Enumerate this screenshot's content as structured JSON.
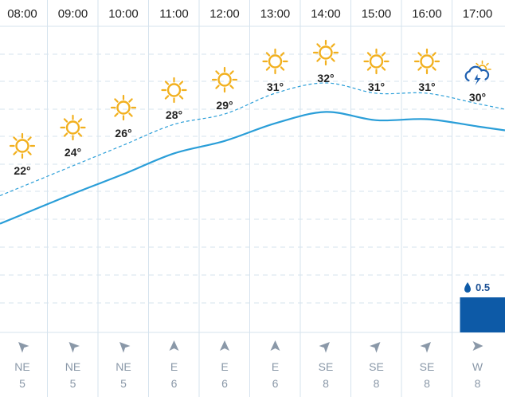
{
  "colors": {
    "sun": "#F2B01E",
    "storm": "#1D5FB0",
    "temp_line": "#2A9ED8",
    "feels_line": "#2A9ED8",
    "precip_bar": "#0D5AA7",
    "grid": "#D6E3EE",
    "wind_arrow": "#8A98A8"
  },
  "hours": [
    {
      "time": "08:00",
      "temp_label": "22°",
      "icon": "sun-icon",
      "wind_dir": "NE",
      "wind_speed": "5",
      "wind_bearing": 225
    },
    {
      "time": "09:00",
      "temp_label": "24°",
      "icon": "sun-icon",
      "wind_dir": "NE",
      "wind_speed": "5",
      "wind_bearing": 225
    },
    {
      "time": "10:00",
      "temp_label": "26°",
      "icon": "sun-icon",
      "wind_dir": "NE",
      "wind_speed": "5",
      "wind_bearing": 225
    },
    {
      "time": "11:00",
      "temp_label": "28°",
      "icon": "sun-icon",
      "wind_dir": "E",
      "wind_speed": "6",
      "wind_bearing": 270
    },
    {
      "time": "12:00",
      "temp_label": "29°",
      "icon": "sun-icon",
      "wind_dir": "E",
      "wind_speed": "6",
      "wind_bearing": 270
    },
    {
      "time": "13:00",
      "temp_label": "31°",
      "icon": "sun-icon",
      "wind_dir": "E",
      "wind_speed": "6",
      "wind_bearing": 270
    },
    {
      "time": "14:00",
      "temp_label": "32°",
      "icon": "sun-icon",
      "wind_dir": "SE",
      "wind_speed": "8",
      "wind_bearing": 315
    },
    {
      "time": "15:00",
      "temp_label": "31°",
      "icon": "sun-icon",
      "wind_dir": "SE",
      "wind_speed": "8",
      "wind_bearing": 315
    },
    {
      "time": "16:00",
      "temp_label": "31°",
      "icon": "sun-icon",
      "wind_dir": "SE",
      "wind_speed": "8",
      "wind_bearing": 315
    },
    {
      "time": "17:00",
      "temp_label": "30°",
      "icon": "thunderstorm-icon",
      "wind_dir": "W",
      "wind_speed": "8",
      "wind_bearing": 0
    }
  ],
  "precipitation": {
    "hour": "17:00",
    "label": "0.5",
    "amount_mm": 0.5
  },
  "chart_data": {
    "type": "line",
    "x": [
      "08:00",
      "09:00",
      "10:00",
      "11:00",
      "12:00",
      "13:00",
      "14:00",
      "15:00",
      "16:00",
      "17:00"
    ],
    "series": [
      {
        "values": [
          22,
          24,
          26,
          28,
          29,
          31,
          32,
          31,
          31,
          30
        ]
      },
      {
        "values": [
          20.5,
          22.5,
          24.4,
          26.4,
          27.6,
          29.3,
          30.4,
          29.6,
          29.7,
          29.0
        ]
      }
    ],
    "precip_values": [
      0,
      0,
      0,
      0,
      0,
      0,
      0,
      0,
      0,
      0.5
    ]
  }
}
